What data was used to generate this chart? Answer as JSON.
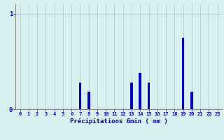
{
  "hours": [
    0,
    1,
    2,
    3,
    4,
    5,
    6,
    7,
    8,
    9,
    10,
    11,
    12,
    13,
    14,
    15,
    16,
    17,
    18,
    19,
    20,
    21,
    22,
    23
  ],
  "values": [
    0,
    0,
    0,
    0,
    0,
    0,
    0,
    0.28,
    0.18,
    0,
    0,
    0,
    0,
    0.28,
    0.38,
    0.28,
    0,
    0,
    0,
    0.75,
    0.18,
    0,
    0,
    0
  ],
  "bar_color": "#0000cc",
  "background_color": "#d8f0f0",
  "grid_color": "#aac8c8",
  "axis_color": "#888888",
  "xlabel": "Précipitations 6min ( mm )",
  "xlabel_color": "#0000cc",
  "tick_color": "#0000cc",
  "ylim": [
    0,
    1.1
  ],
  "yticks": [
    0,
    1
  ],
  "xlim": [
    -0.5,
    23.5
  ]
}
